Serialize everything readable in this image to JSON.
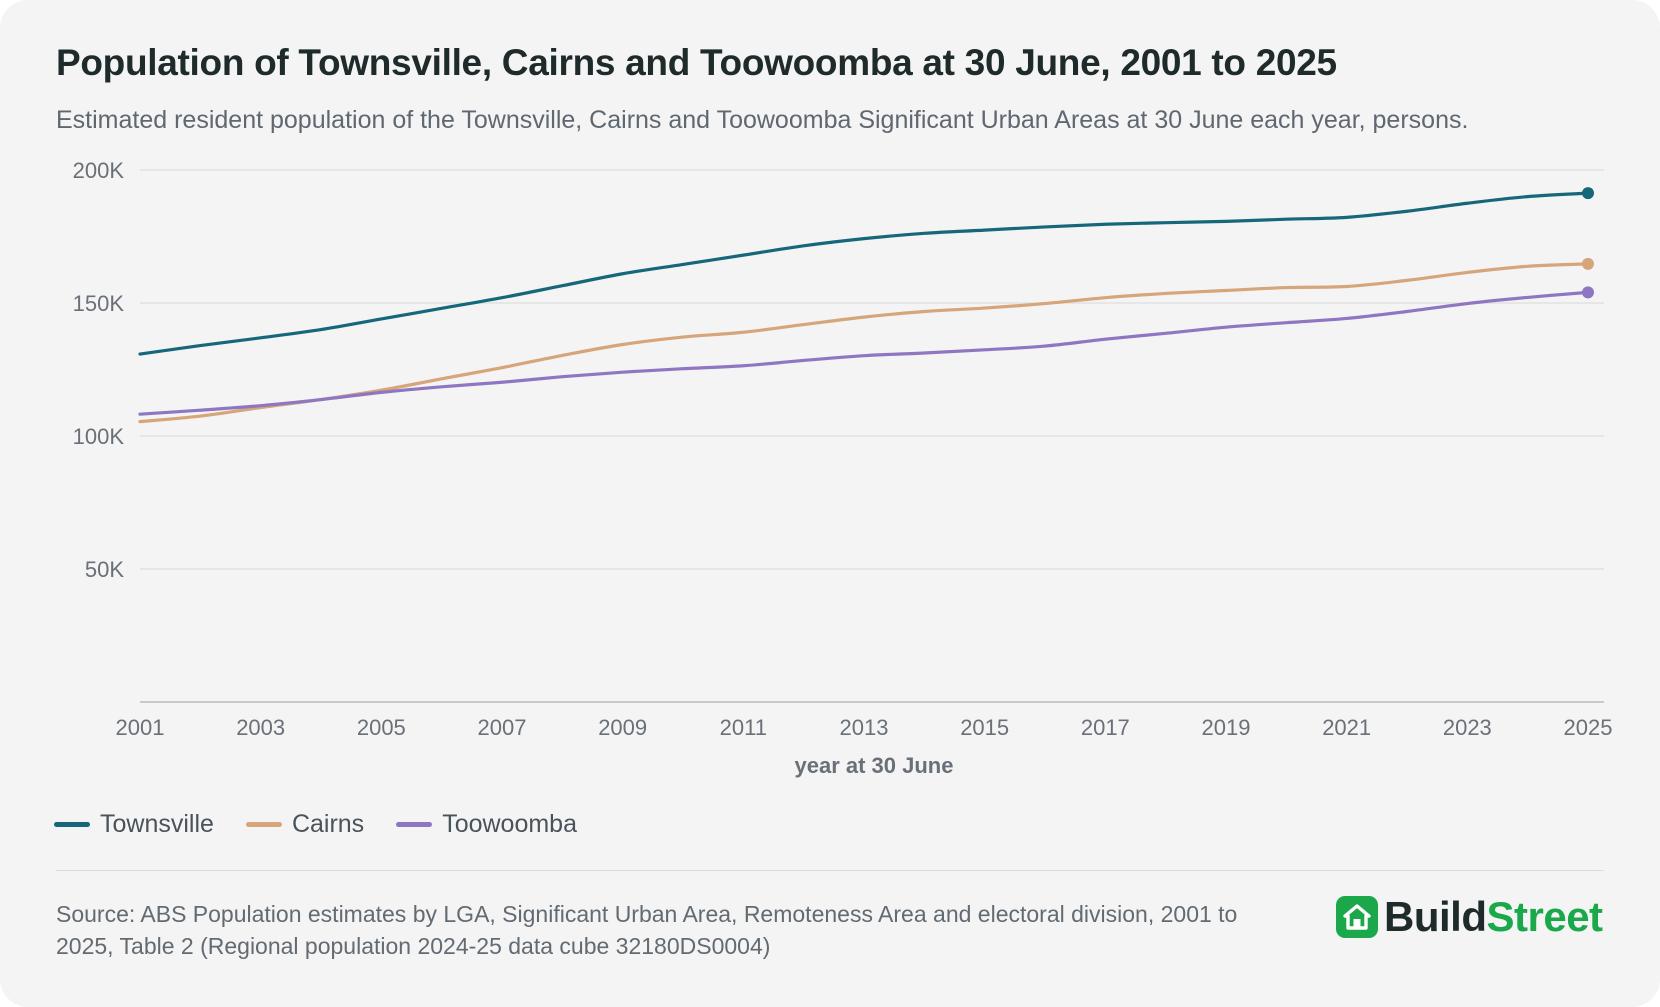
{
  "title": "Population of Townsville, Cairns and Toowoomba at 30 June, 2001 to 2025",
  "subtitle": "Estimated resident population of the Townsville, Cairns and Toowoomba Significant Urban Areas at 30 June each year, persons.",
  "source": "Source: ABS Population estimates by LGA, Significant Urban Area, Remoteness Area and electoral division, 2001 to 2025, Table 2 (Regional population 2024-25 data cube 32180DS0004)",
  "brand": {
    "part1": "Build",
    "part2": "Street",
    "icon": "house-icon"
  },
  "colors": {
    "Townsville": "#17677a",
    "Cairns": "#d6a57a",
    "Toowoomba": "#8f76c2",
    "grid": "#e2e2e2",
    "axis": "#c9c9c9"
  },
  "chart_data": {
    "type": "line",
    "title": "Population of Townsville, Cairns and Toowoomba at 30 June, 2001 to 2025",
    "xlabel": "year at 30 June",
    "ylabel": "",
    "x": [
      2001,
      2002,
      2003,
      2004,
      2005,
      2006,
      2007,
      2008,
      2009,
      2010,
      2011,
      2012,
      2013,
      2014,
      2015,
      2016,
      2017,
      2018,
      2019,
      2020,
      2021,
      2022,
      2023,
      2024,
      2025
    ],
    "xticks": [
      "2001",
      "2003",
      "2005",
      "2007",
      "2009",
      "2011",
      "2013",
      "2015",
      "2017",
      "2019",
      "2021",
      "2023",
      "2025"
    ],
    "yticks": [
      {
        "value": 50000,
        "label": "50K"
      },
      {
        "value": 100000,
        "label": "100K"
      },
      {
        "value": 150000,
        "label": "150K"
      },
      {
        "value": 200000,
        "label": "200K"
      }
    ],
    "ylim": [
      0,
      200000
    ],
    "grid": true,
    "legend_position": "bottom-left",
    "series": [
      {
        "name": "Townsville",
        "values": [
          130800,
          134000,
          136900,
          140000,
          144000,
          148000,
          152000,
          156500,
          161000,
          164500,
          168000,
          171500,
          174200,
          176200,
          177400,
          178600,
          179600,
          180200,
          180700,
          181500,
          182200,
          184500,
          187500,
          190000,
          191300
        ]
      },
      {
        "name": "Cairns",
        "values": [
          105400,
          107500,
          110700,
          113700,
          117200,
          121500,
          125700,
          130300,
          134400,
          137200,
          139000,
          141900,
          144700,
          146800,
          148100,
          149800,
          152000,
          153600,
          154700,
          155800,
          156200,
          158500,
          161500,
          163800,
          164700
        ]
      },
      {
        "name": "Toowoomba",
        "values": [
          108200,
          109700,
          111400,
          113700,
          116400,
          118500,
          120200,
          122300,
          124000,
          125300,
          126400,
          128400,
          130200,
          131200,
          132400,
          133800,
          136400,
          138600,
          140900,
          142600,
          144200,
          146800,
          149800,
          152100,
          154000
        ]
      }
    ]
  }
}
